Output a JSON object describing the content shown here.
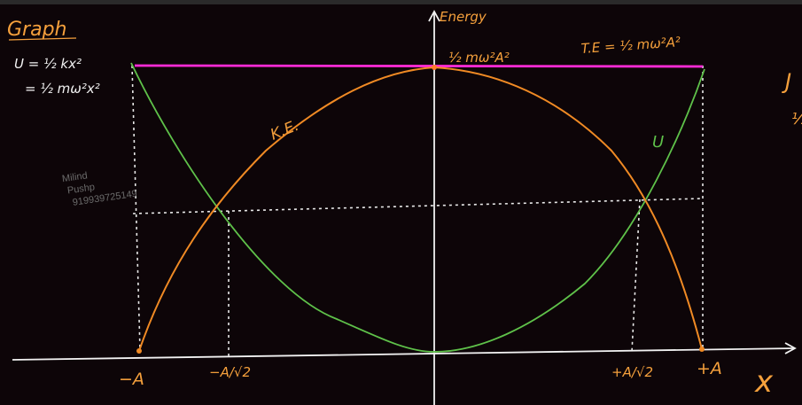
{
  "heading": "Graph",
  "formula_line1": "U = ½ kx²",
  "formula_line2": "= ½ mω²x²",
  "y_axis_label": "Energy",
  "top_value_label": "½ mω²A²",
  "total_energy_label": "T.E = ½ mω²A²",
  "ke_curve_label": "K.E.",
  "u_curve_label": "U",
  "x_ticks": [
    "−A",
    "−A/√2",
    "+A/√2",
    "+A"
  ],
  "x_axis_label": "x",
  "watermark": [
    "Milind",
    "Pushp",
    "919939725149"
  ],
  "edge_fragment_top": "J",
  "edge_fragment_mid": "½",
  "colors": {
    "background": "#0d0508",
    "potential_energy_curve": "#5fc24a",
    "kinetic_energy_curve": "#f08a24",
    "total_energy_line": "#ff2bd6",
    "axes": "#f2f2f2",
    "handwriting_orange": "#f5a03c"
  }
}
